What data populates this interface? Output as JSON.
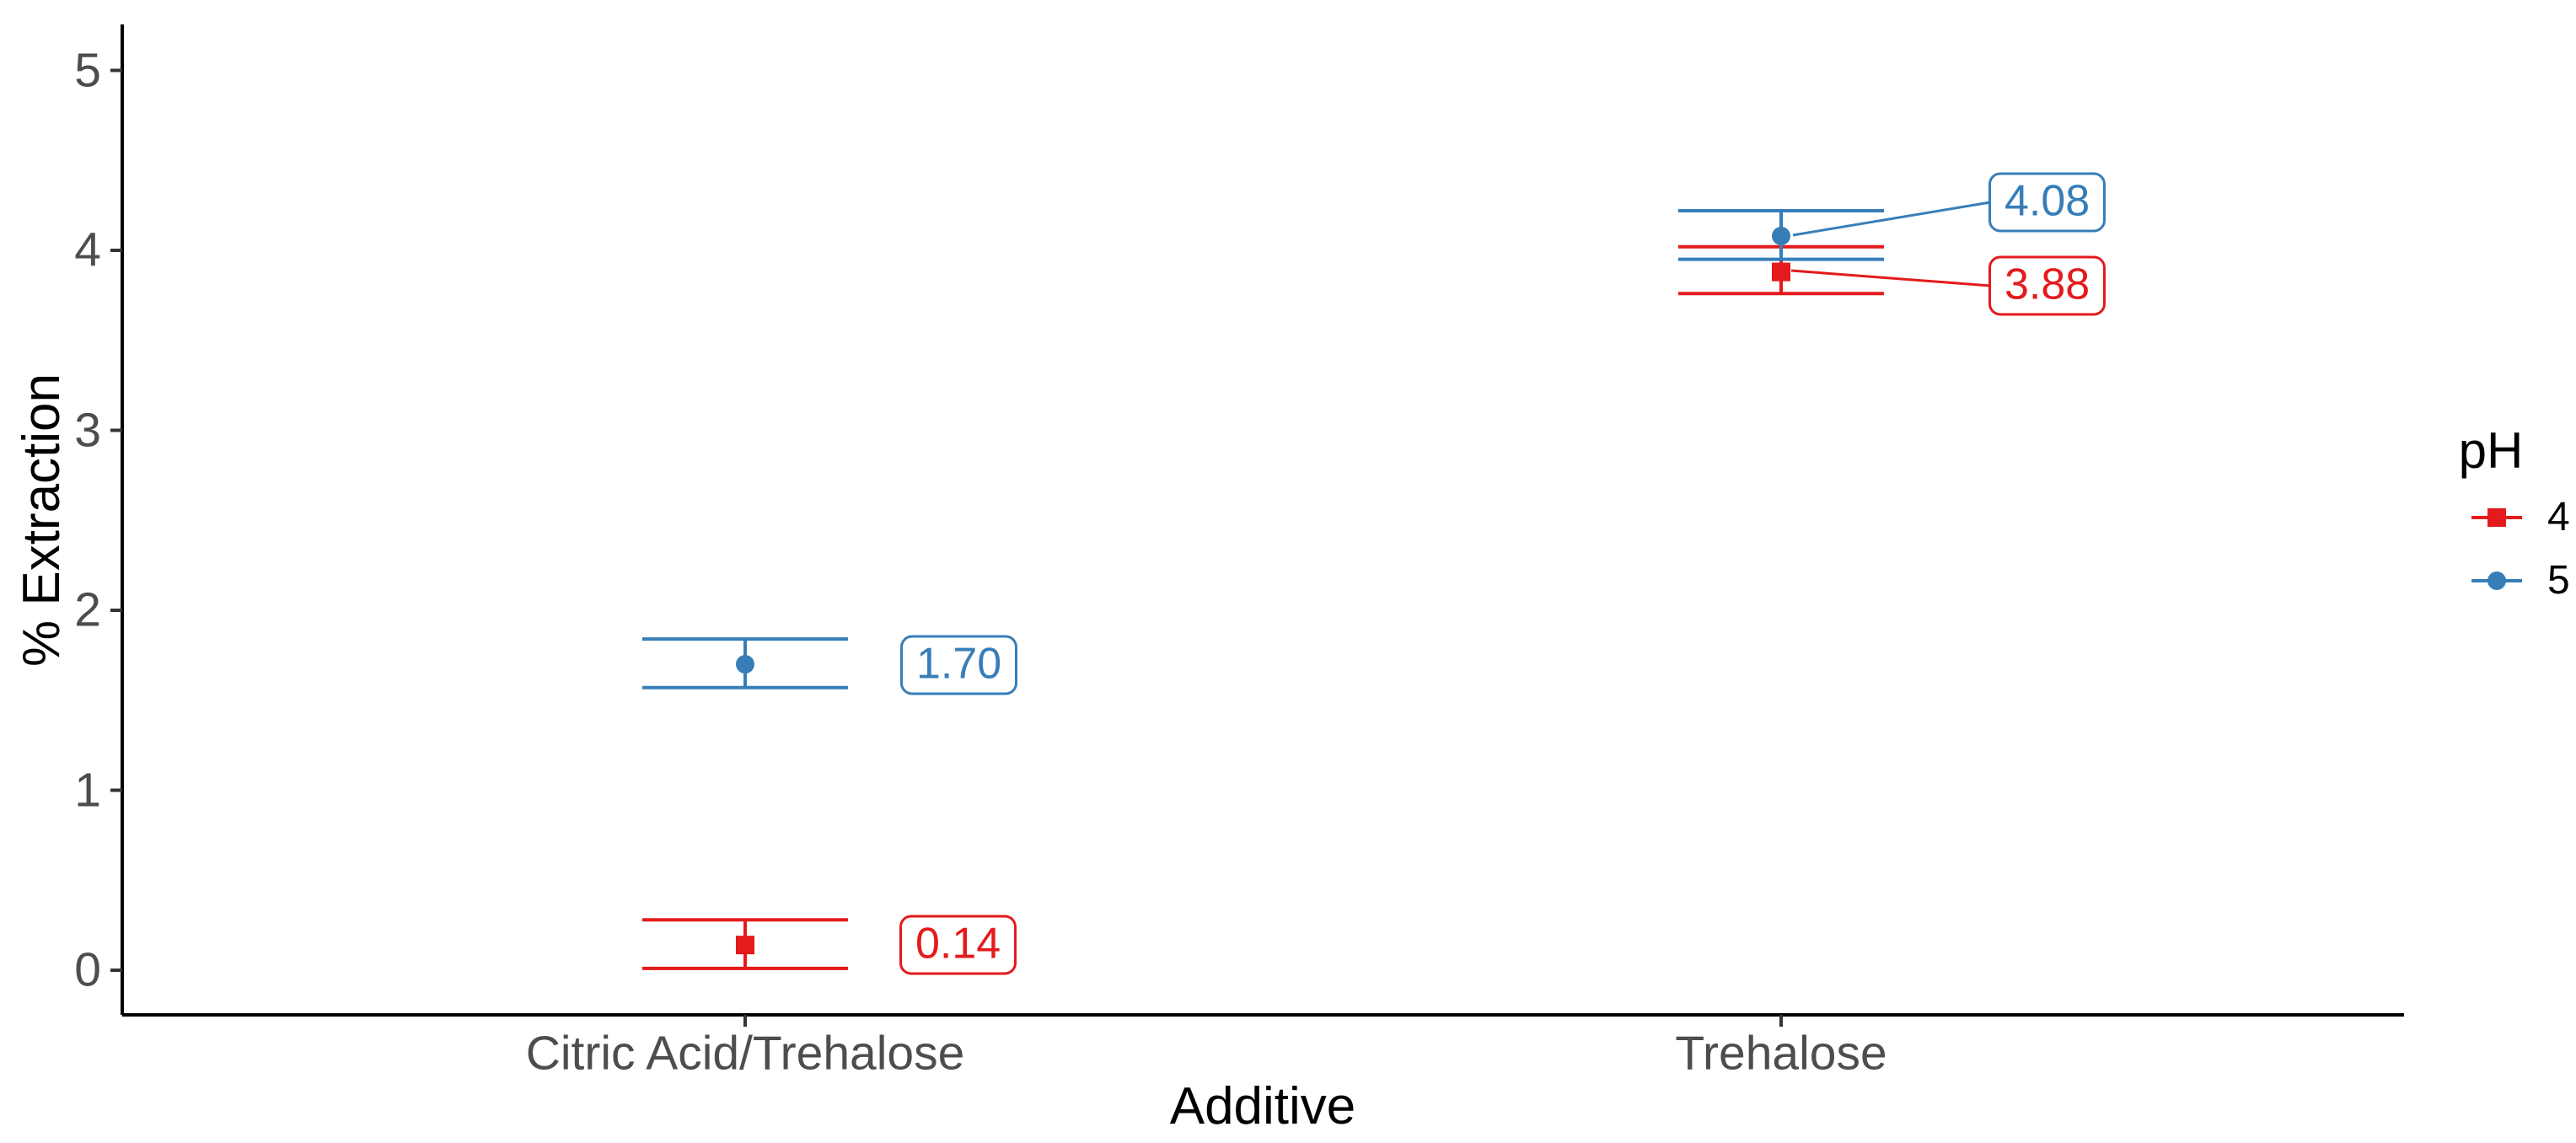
{
  "chart_data": {
    "type": "scatter",
    "title": "",
    "xlabel": "Additive",
    "ylabel": "% Extraction",
    "categories": [
      "Citric Acid/Trehalose",
      "Trehalose"
    ],
    "y_ticks": [
      "0",
      "1",
      "2",
      "3",
      "4",
      "5"
    ],
    "ylim": [
      -0.25,
      5.25
    ],
    "grid": "off",
    "legend_position": "right",
    "legend": {
      "title": "pH",
      "entries": [
        {
          "label": "4",
          "color": "#E41A1C",
          "marker": "square"
        },
        {
          "label": "5",
          "color": "#377EB8",
          "marker": "circle"
        }
      ]
    },
    "series": [
      {
        "name": "4",
        "color": "#E41A1C",
        "marker": "square",
        "points": [
          {
            "category": "Citric Acid/Trehalose",
            "mean": 0.14,
            "ymin": 0.01,
            "ymax": 0.28,
            "label": "0.14"
          },
          {
            "category": "Trehalose",
            "mean": 3.88,
            "ymin": 3.76,
            "ymax": 4.02,
            "label": "3.88"
          }
        ]
      },
      {
        "name": "5",
        "color": "#377EB8",
        "marker": "circle",
        "points": [
          {
            "category": "Citric Acid/Trehalose",
            "mean": 1.7,
            "ymin": 1.57,
            "ymax": 1.84,
            "label": "1.70"
          },
          {
            "category": "Trehalose",
            "mean": 4.08,
            "ymin": 3.95,
            "ymax": 4.22,
            "label": "4.08"
          }
        ]
      }
    ]
  },
  "colors": {
    "ph4_red": "#E41A1C",
    "ph5_blue": "#377EB8",
    "axis_text": "#4D4D4D",
    "axis_line": "#000000",
    "tick_mark": "#333333"
  }
}
